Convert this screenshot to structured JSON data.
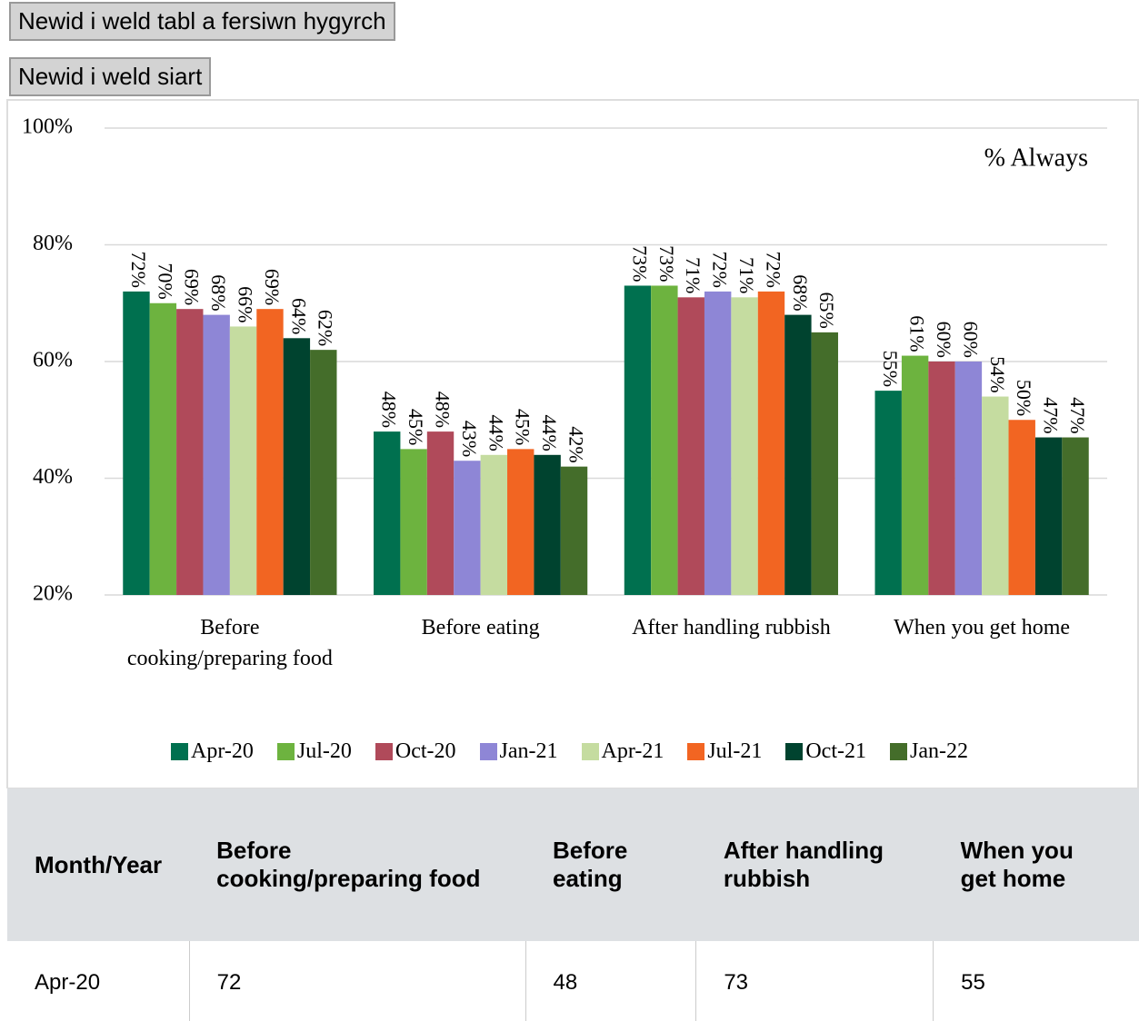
{
  "buttons": [
    "Newid i weld tabl a fersiwn hygyrch",
    "Newid i weld siart"
  ],
  "chart_data": {
    "type": "bar",
    "annotation": "% Always",
    "categories": [
      "Before cooking/preparing food",
      "Before eating",
      "After handling rubbish",
      "When you get home"
    ],
    "series": [
      {
        "name": "Apr-20",
        "color": "#00704f",
        "values": [
          72,
          48,
          73,
          55
        ],
        "value_labels": [
          "72%",
          "48%",
          "73%",
          "55%"
        ]
      },
      {
        "name": "Jul-20",
        "color": "#6db33f",
        "values": [
          70,
          45,
          73,
          61
        ],
        "value_labels": [
          "70%",
          "45%",
          "73%",
          "61%"
        ]
      },
      {
        "name": "Oct-20",
        "color": "#b04a5a",
        "values": [
          69,
          48,
          71,
          60
        ],
        "value_labels": [
          "69%",
          "48%",
          "71%",
          "60%"
        ]
      },
      {
        "name": "Jan-21",
        "color": "#8e86d6",
        "values": [
          68,
          43,
          72,
          60
        ],
        "value_labels": [
          "68%",
          "43%",
          "72%",
          "60%"
        ]
      },
      {
        "name": "Apr-21",
        "color": "#c5dca0",
        "values": [
          66,
          44,
          71,
          54
        ],
        "value_labels": [
          "66%",
          "44%",
          "71%",
          "54%"
        ]
      },
      {
        "name": "Jul-21",
        "color": "#f26522",
        "values": [
          69,
          45,
          72,
          50
        ],
        "value_labels": [
          "69%",
          "45%",
          "72%",
          "50%"
        ]
      },
      {
        "name": "Oct-21",
        "color": "#00432f",
        "values": [
          64,
          44,
          68,
          47
        ],
        "value_labels": [
          "64%",
          "44%",
          "68%",
          "47%"
        ]
      },
      {
        "name": "Jan-22",
        "color": "#446d2a",
        "values": [
          62,
          42,
          65,
          47
        ],
        "value_labels": [
          "62%",
          "42%",
          "65%",
          "47%"
        ]
      }
    ],
    "ylim": [
      20,
      100
    ],
    "yticks": [
      {
        "value": 20,
        "label": "20%"
      },
      {
        "value": 40,
        "label": "40%"
      },
      {
        "value": 60,
        "label": "60%"
      },
      {
        "value": 80,
        "label": "80%"
      },
      {
        "value": 100,
        "label": "100%"
      }
    ],
    "grid": true
  },
  "table": {
    "header": [
      "Month/Year",
      "Before cooking/preparing food",
      "Before eating",
      "After handling rubbish",
      "When you get home"
    ],
    "rows": [
      [
        "Apr-20",
        72,
        48,
        73,
        55
      ]
    ]
  }
}
